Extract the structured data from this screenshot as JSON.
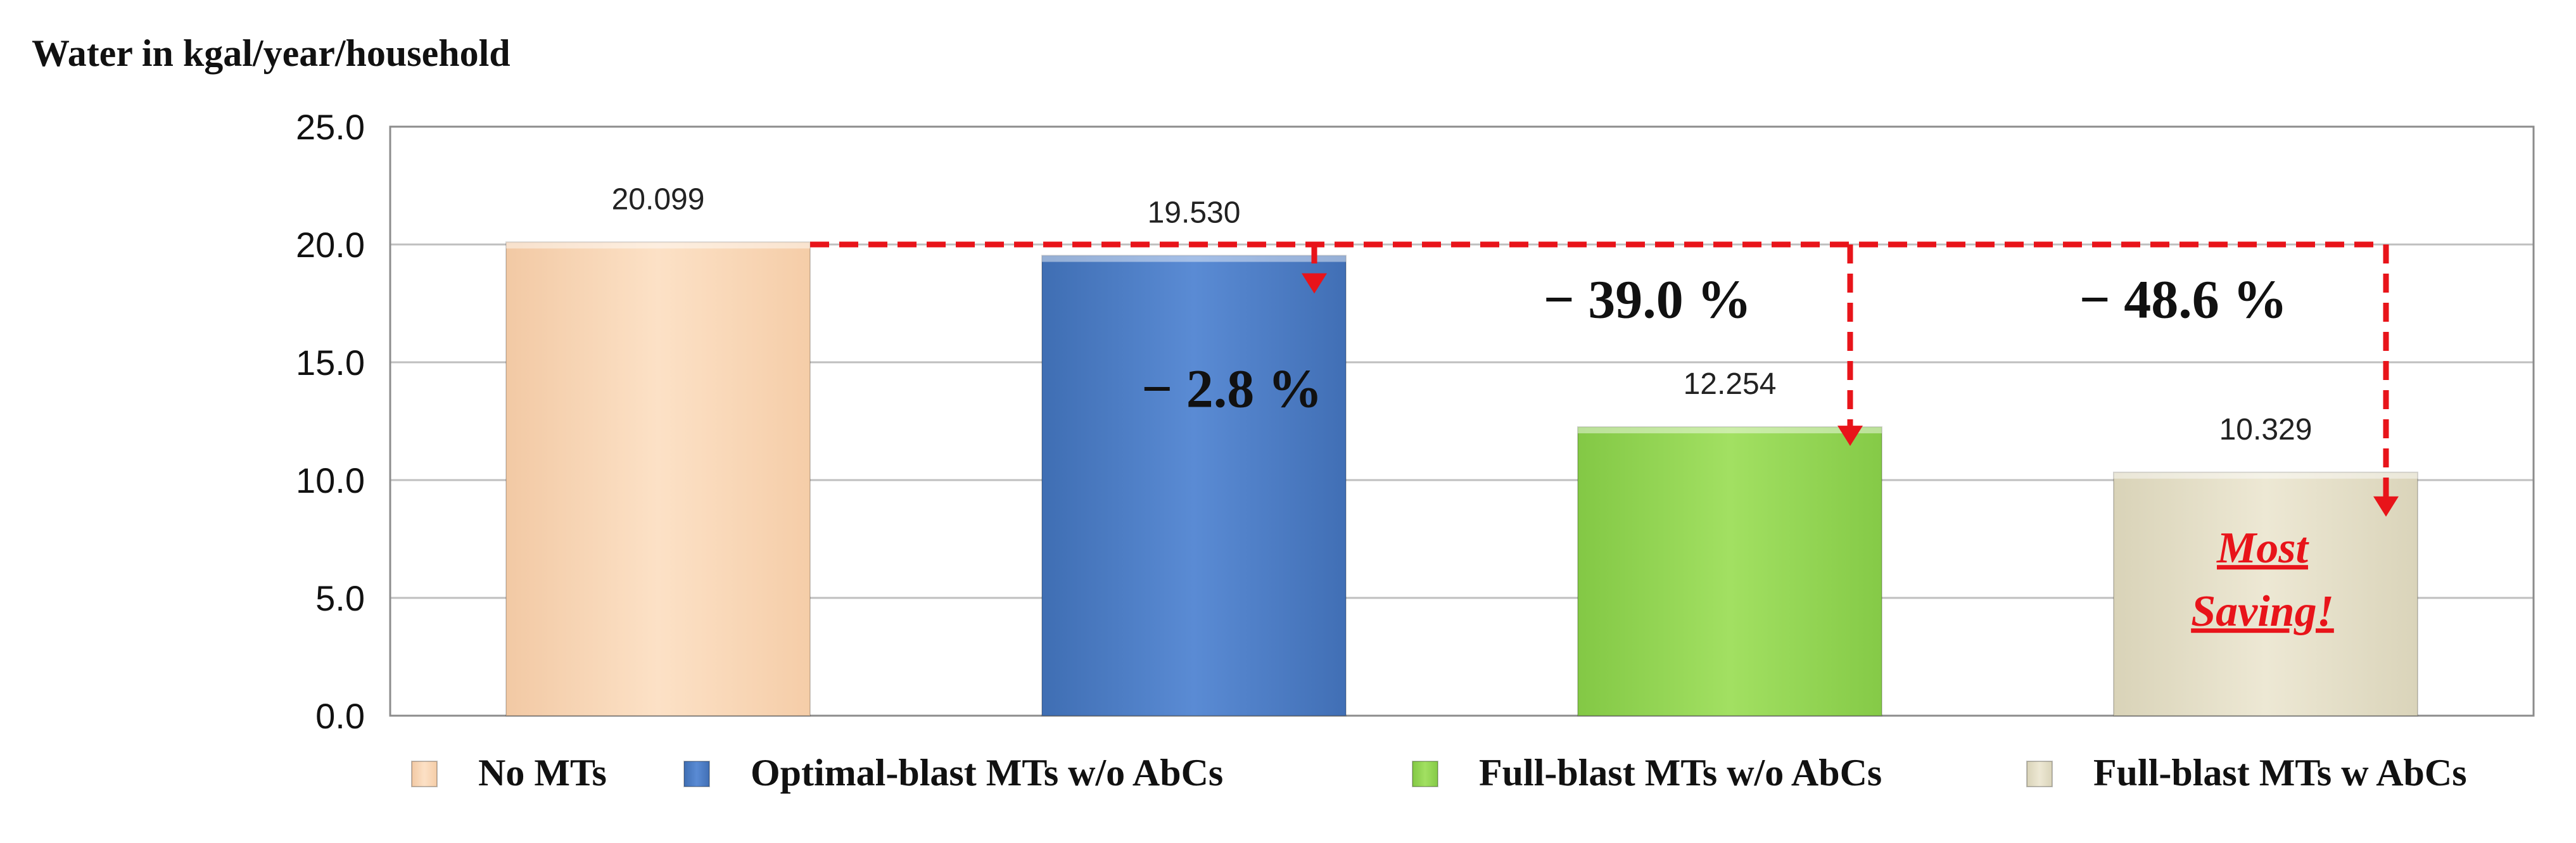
{
  "chart_data": {
    "type": "bar",
    "title": "Water in kgal/year/household",
    "categories": [
      "No MTs",
      "Optimal-blast MTs w/o AbCs",
      "Full-blast MTs w/o AbCs",
      "Full-blast MTs w AbCs"
    ],
    "values": [
      20.099,
      19.53,
      12.254,
      10.329
    ],
    "data_labels": [
      "20.099",
      "19.530",
      "12.254",
      "10.329"
    ],
    "ylim": [
      0,
      25
    ],
    "yticks": [
      0,
      5,
      10,
      15,
      20,
      25
    ],
    "ytick_labels": [
      "0.0",
      "5.0",
      "10.0",
      "15.0",
      "20.0",
      "25.0"
    ],
    "grid": true,
    "legend_position": "bottom",
    "colors": [
      "#FCDDBE",
      "#5585CC",
      "#9BDC5A",
      "#E9E4CF"
    ],
    "reference_value": 20,
    "reductions": [
      {
        "category_index": 1,
        "label": "− 2.8 %"
      },
      {
        "category_index": 2,
        "label": "− 39.0 %"
      },
      {
        "category_index": 3,
        "label": "− 48.6 %"
      }
    ],
    "annotation": {
      "category_index": 3,
      "lines": [
        "Most",
        "Saving!"
      ],
      "color": "#E8141A"
    },
    "arrow_color": "#E8141A"
  }
}
